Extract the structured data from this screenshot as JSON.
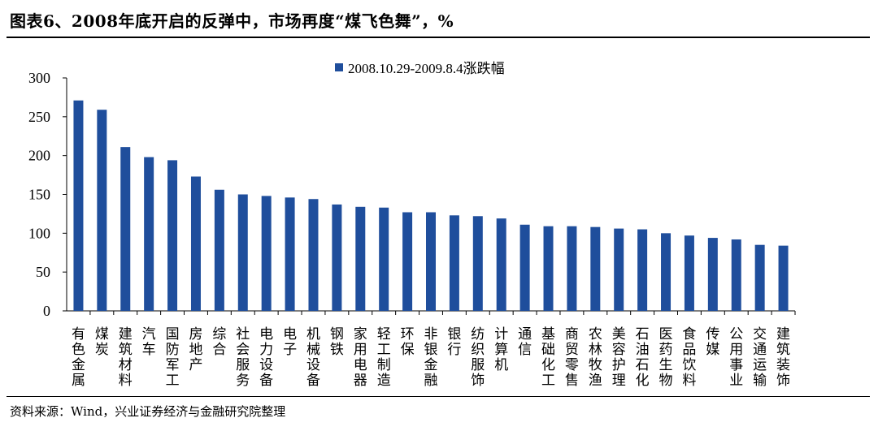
{
  "title": "图表6、2008年底开启的反弹中，市场再度“煤飞色舞”，%",
  "footer": "资料来源：Wind，兴业证券经济与金融研究院整理",
  "colors": {
    "bar": "#1f4e9c",
    "axis": "#000000"
  },
  "chart_data": {
    "type": "bar",
    "legend": "2008.10.29-2009.8.4涨跌幅",
    "legend_position": "top-center",
    "grid": false,
    "ylim": [
      0,
      300
    ],
    "yticks": [
      0,
      50,
      100,
      150,
      200,
      250,
      300
    ],
    "categories": [
      "有色金属",
      "煤炭",
      "建筑材料",
      "汽车",
      "国防军工",
      "房地产",
      "综合",
      "社会服务",
      "电力设备",
      "电子",
      "机械设备",
      "钢铁",
      "家用电器",
      "轻工制造",
      "环保",
      "非银金融",
      "银行",
      "纺织服饰",
      "计算机",
      "通信",
      "基础化工",
      "商贸零售",
      "农林牧渔",
      "美容护理",
      "石油石化",
      "医药生物",
      "食品饮料",
      "传媒",
      "公用事业",
      "交通运输",
      "建筑装饰"
    ],
    "series": [
      {
        "values": [
          271,
          259,
          211,
          198,
          194,
          173,
          156,
          150,
          148,
          146,
          144,
          137,
          134,
          133,
          127,
          127,
          123,
          122,
          119,
          111,
          109,
          109,
          108,
          106,
          105,
          100,
          97,
          94,
          92,
          85,
          84
        ]
      }
    ]
  }
}
